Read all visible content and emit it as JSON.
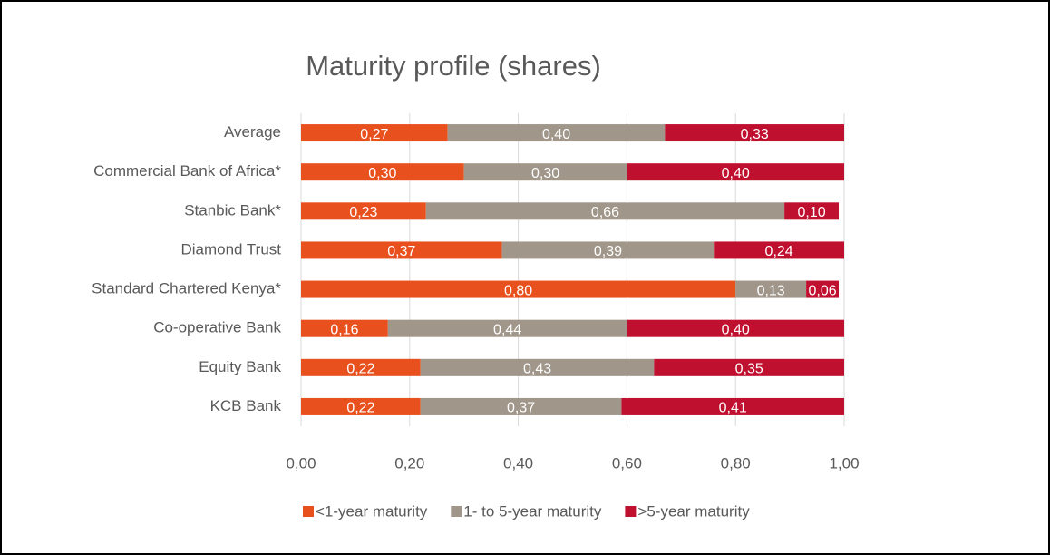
{
  "chart_data": {
    "type": "stacked-bar-horizontal",
    "title": "Maturity profile (shares)",
    "categories": [
      "Average",
      "Commercial Bank of Africa*",
      "Stanbic Bank*",
      "Diamond Trust",
      "Standard Chartered Kenya*",
      "Co-operative Bank",
      "Equity Bank",
      "KCB Bank"
    ],
    "series": [
      {
        "name": "<1-year maturity",
        "color": "#e8501e",
        "values": [
          0.27,
          0.3,
          0.23,
          0.37,
          0.8,
          0.16,
          0.22,
          0.22
        ],
        "value_labels": [
          "0,27",
          "0,30",
          "0,23",
          "0,37",
          "0,80",
          "0,16",
          "0,22",
          "0,22"
        ]
      },
      {
        "name": "1- to 5-year maturity",
        "color": "#a09689",
        "values": [
          0.4,
          0.3,
          0.66,
          0.39,
          0.13,
          0.44,
          0.43,
          0.37
        ],
        "value_labels": [
          "0,40",
          "0,30",
          "0,66",
          "0,39",
          "0,13",
          "0,44",
          "0,43",
          "0,37"
        ]
      },
      {
        "name": ">5-year maturity",
        "color": "#c0102f",
        "values": [
          0.33,
          0.4,
          0.1,
          0.24,
          0.06,
          0.4,
          0.35,
          0.41
        ],
        "value_labels": [
          "0,33",
          "0,40",
          "0,10",
          "0,24",
          "0,06",
          "0,40",
          "0,35",
          "0,41"
        ]
      }
    ],
    "xlim": [
      0,
      1
    ],
    "xticks": [
      {
        "value": 0,
        "label": "0,00"
      },
      {
        "value": 0.2,
        "label": "0,20"
      },
      {
        "value": 0.4,
        "label": "0,40"
      },
      {
        "value": 0.6,
        "label": "0,60"
      },
      {
        "value": 0.8,
        "label": "0,80"
      },
      {
        "value": 1,
        "label": "1,00"
      }
    ],
    "grid": true,
    "legend": "bottom"
  }
}
